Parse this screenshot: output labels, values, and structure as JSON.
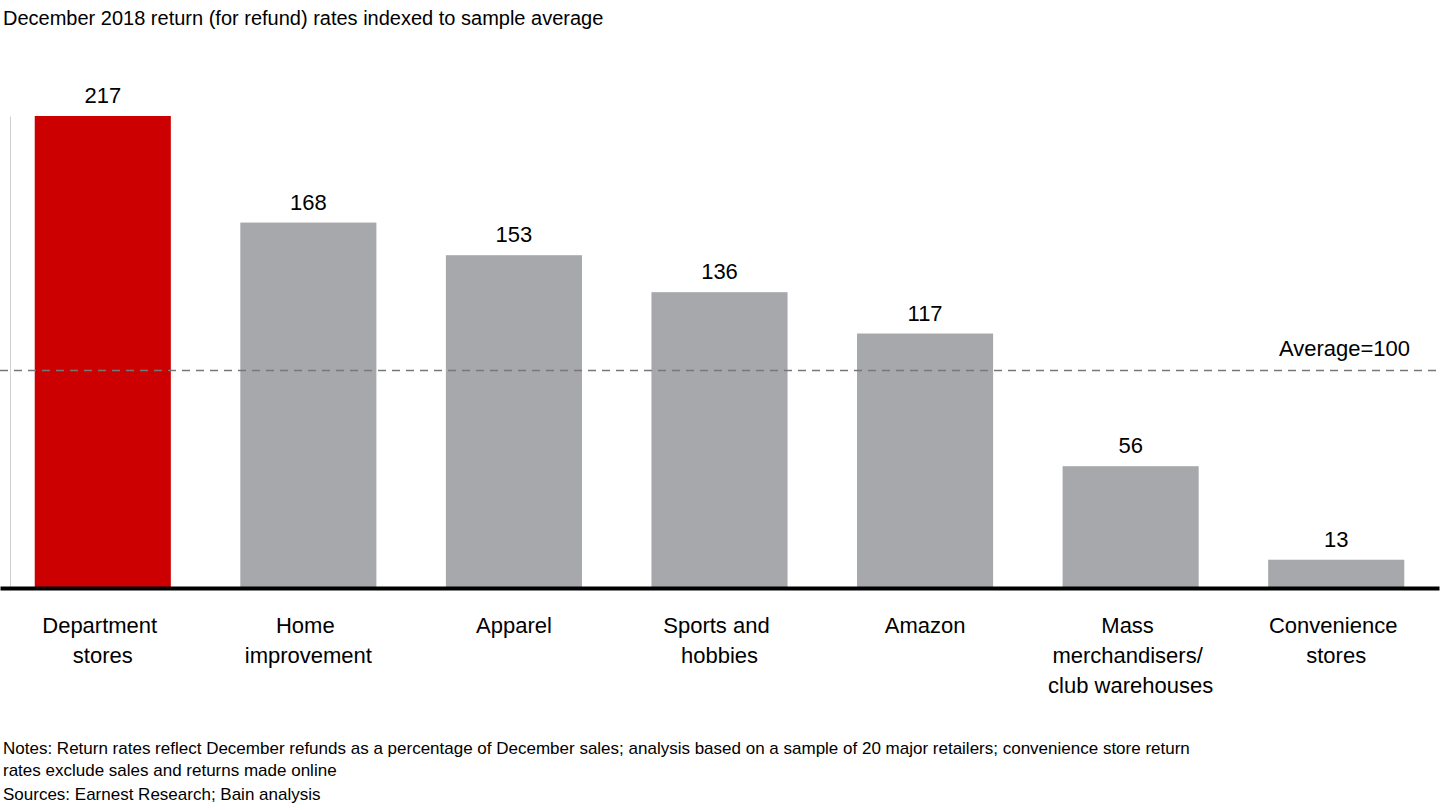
{
  "chart_data": {
    "type": "bar",
    "title": "December 2018 return (for refund) rates indexed to sample average",
    "categories": [
      "Department stores",
      "Home improvement",
      "Apparel",
      "Sports and hobbies",
      "Amazon",
      "Mass merchandisers/ club warehouses",
      "Convenience stores"
    ],
    "values": [
      217,
      168,
      153,
      136,
      117,
      56,
      13
    ],
    "colors": [
      "#cc0000",
      "#a7a8ab",
      "#a7a8ab",
      "#a7a8ab",
      "#a7a8ab",
      "#a7a8ab",
      "#a7a8ab"
    ],
    "ylim": [
      0,
      217
    ],
    "yticks": [],
    "tick_labels": "x",
    "data_labels": true,
    "grid": false,
    "reference_line": {
      "value": 100,
      "label": "Average=100"
    },
    "notes": [
      "Notes: Return rates reflect December refunds as a percentage of December sales; analysis based on a sample of 20 major retailers; convenience store return",
      "rates exclude sales and returns made online"
    ],
    "sources": "Sources: Earnest Research; Bain analysis"
  }
}
